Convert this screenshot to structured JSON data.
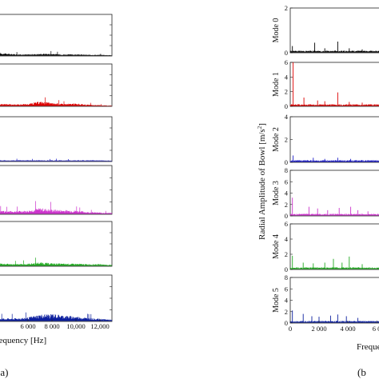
{
  "figure": {
    "left_xlabel": "requency [Hz]",
    "right_xlabel": "Freque",
    "right_ylabel": "Radial Amplitude of Bowl [m/s",
    "right_ylabel_sup": "2",
    "right_ylabel_end": "]",
    "label_a": "(a)",
    "label_b": "(b"
  },
  "chart_data": [
    {
      "type": "line",
      "panel": "(a)",
      "xlabel": "requency [Hz]",
      "xlim": [
        3600,
        13000
      ],
      "x_ticks": [
        6000,
        8000,
        10000,
        12000
      ],
      "x_tick_labels": [
        "6 000",
        "8 000",
        "10,000",
        "12,000"
      ],
      "series": [
        {
          "name": "",
          "color": "#000000",
          "values": [
            [
              3600,
              0.08
            ],
            [
              3900,
              0.06
            ],
            [
              4600,
              0.04
            ],
            [
              5500,
              0.03
            ],
            [
              6000,
              0.03
            ],
            [
              6800,
              0.04
            ],
            [
              7500,
              0.05
            ],
            [
              8200,
              0.04
            ],
            [
              9000,
              0.03
            ],
            [
              10000,
              0.03
            ],
            [
              11000,
              0.02
            ],
            [
              12000,
              0.02
            ],
            [
              13000,
              0.01
            ]
          ]
        },
        {
          "name": "",
          "color": "#dd0000",
          "values": [
            [
              3600,
              0.05
            ],
            [
              5000,
              0.04
            ],
            [
              6000,
              0.05
            ],
            [
              7000,
              0.11
            ],
            [
              7500,
              0.09
            ],
            [
              8000,
              0.07
            ],
            [
              9000,
              0.05
            ],
            [
              10000,
              0.06
            ],
            [
              11000,
              0.03
            ],
            [
              12000,
              0.02
            ],
            [
              13000,
              0.01
            ]
          ]
        },
        {
          "name": "",
          "color": "#1c1cc8",
          "values": [
            [
              3600,
              0.02
            ],
            [
              5000,
              0.02
            ],
            [
              6000,
              0.02
            ],
            [
              7000,
              0.02
            ],
            [
              8000,
              0.02
            ],
            [
              9000,
              0.02
            ],
            [
              10000,
              0.02
            ],
            [
              11000,
              0.02
            ],
            [
              12000,
              0.02
            ],
            [
              13000,
              0.01
            ]
          ]
        },
        {
          "name": "",
          "color": "#cc33cc",
          "values": [
            [
              3600,
              0.06
            ],
            [
              5000,
              0.06
            ],
            [
              6000,
              0.07
            ],
            [
              7000,
              0.12
            ],
            [
              8000,
              0.09
            ],
            [
              9000,
              0.08
            ],
            [
              10000,
              0.07
            ],
            [
              11000,
              0.04
            ],
            [
              12000,
              0.03
            ],
            [
              13000,
              0.02
            ]
          ]
        },
        {
          "name": "",
          "color": "#22aa22",
          "values": [
            [
              3600,
              0.06
            ],
            [
              5000,
              0.04
            ],
            [
              6000,
              0.05
            ],
            [
              7000,
              0.08
            ],
            [
              8000,
              0.06
            ],
            [
              9000,
              0.05
            ],
            [
              10000,
              0.05
            ],
            [
              11000,
              0.04
            ],
            [
              12000,
              0.04
            ],
            [
              13000,
              0.02
            ]
          ]
        },
        {
          "name": "",
          "color": "#0b1e9e",
          "values": [
            [
              3600,
              0.06
            ],
            [
              5000,
              0.06
            ],
            [
              6000,
              0.08
            ],
            [
              7000,
              0.14
            ],
            [
              8000,
              0.16
            ],
            [
              9000,
              0.12
            ],
            [
              10000,
              0.1
            ],
            [
              11000,
              0.07
            ],
            [
              12000,
              0.05
            ],
            [
              13000,
              0.03
            ]
          ]
        }
      ]
    },
    {
      "type": "line",
      "panel": "(b)",
      "ylabel": "Radial Amplitude of Bowl [m/s2]",
      "xlim": [
        0,
        6500
      ],
      "x_ticks": [
        0,
        2000,
        4000,
        6000
      ],
      "x_tick_labels": [
        "0",
        "2 000",
        "4 000",
        "6 0"
      ],
      "panels": [
        {
          "name": "Mode 0",
          "color": "#000000",
          "y_ticks": [
            0,
            2
          ],
          "spikes": [
            [
              150,
              0.3
            ],
            [
              1700,
              0.45
            ],
            [
              2400,
              0.2
            ],
            [
              3300,
              0.5
            ],
            [
              4100,
              0.2
            ],
            [
              5000,
              0.15
            ]
          ]
        },
        {
          "name": "Mode 1",
          "color": "#dd0000",
          "y_ticks": [
            0,
            2,
            4,
            6
          ],
          "spikes": [
            [
              200,
              6.0
            ],
            [
              950,
              1.2
            ],
            [
              1900,
              0.8
            ],
            [
              2400,
              0.7
            ],
            [
              3300,
              1.9
            ],
            [
              4100,
              0.6
            ],
            [
              5000,
              0.5
            ]
          ]
        },
        {
          "name": "Mode 2",
          "color": "#1c1cc8",
          "y_ticks": [
            0,
            2,
            4
          ],
          "spikes": [
            [
              200,
              0.6
            ],
            [
              1600,
              0.4
            ],
            [
              2400,
              0.3
            ],
            [
              3300,
              0.4
            ],
            [
              4200,
              0.3
            ],
            [
              5000,
              0.2
            ]
          ]
        },
        {
          "name": "Mode 3",
          "color": "#cc33cc",
          "y_ticks": [
            0,
            2,
            4,
            6,
            8
          ],
          "spikes": [
            [
              150,
              3.2
            ],
            [
              1300,
              1.6
            ],
            [
              1900,
              1.3
            ],
            [
              2600,
              1.0
            ],
            [
              3400,
              1.4
            ],
            [
              4200,
              1.6
            ],
            [
              4700,
              1.0
            ],
            [
              5400,
              0.8
            ]
          ]
        },
        {
          "name": "Mode 4",
          "color": "#22aa22",
          "y_ticks": [
            0,
            2,
            4,
            6
          ],
          "spikes": [
            [
              150,
              1.8
            ],
            [
              900,
              0.9
            ],
            [
              1600,
              0.8
            ],
            [
              2400,
              0.9
            ],
            [
              3000,
              1.4
            ],
            [
              3600,
              0.9
            ],
            [
              4100,
              1.7
            ],
            [
              5000,
              0.7
            ]
          ]
        },
        {
          "name": "Mode 5",
          "color": "#0b1e9e",
          "y_ticks": [
            0,
            2,
            4,
            6,
            8
          ],
          "spikes": [
            [
              150,
              2.2
            ],
            [
              900,
              1.6
            ],
            [
              1500,
              1.2
            ],
            [
              2000,
              1.1
            ],
            [
              2800,
              1.3
            ],
            [
              3300,
              1.5
            ],
            [
              3900,
              1.2
            ],
            [
              4700,
              0.9
            ]
          ]
        }
      ]
    }
  ]
}
